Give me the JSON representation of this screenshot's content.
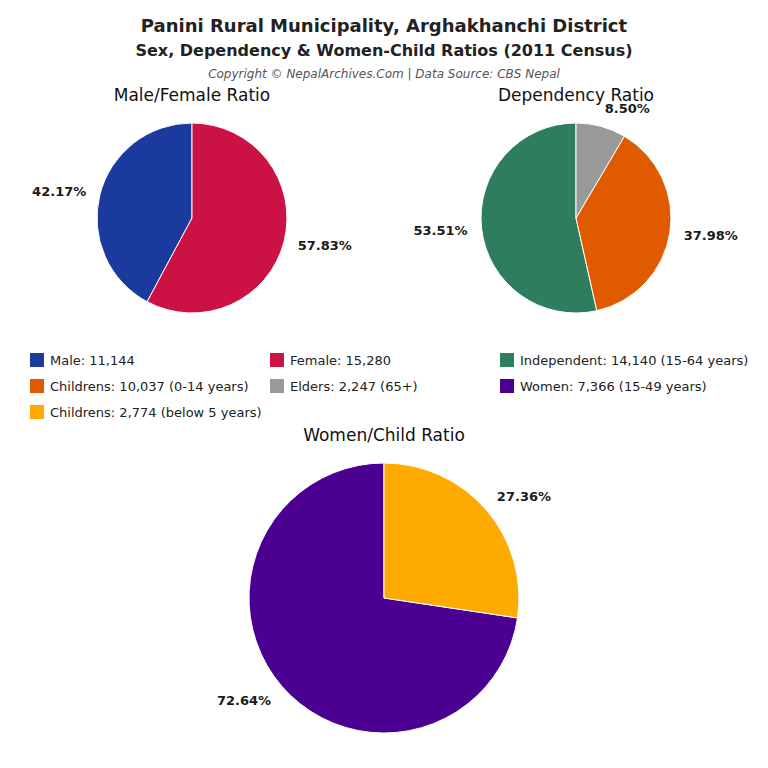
{
  "title": "Panini Rural Municipality, Arghakhanchi District",
  "subtitle": "Sex, Dependency & Women-Child Ratios (2011 Census)",
  "annotations": [
    "Copyright © NepalArchives.Com | Data Source: CBS Nepal"
  ],
  "chart_data": [
    {
      "type": "pie",
      "title": "Male/Female Ratio",
      "categories": [
        "Male: 11,144",
        "Female: 15,280"
      ],
      "values": [
        42.17,
        57.83
      ],
      "value_labels": [
        "42.17%",
        "57.83%"
      ],
      "colors": [
        "#1a3a9e",
        "#cc1144"
      ],
      "data_labels": true,
      "legend": "bottom"
    },
    {
      "type": "pie",
      "title": "Dependency Ratio",
      "categories": [
        "Independent: 14,140 (15-64 years)",
        "Childrens: 10,037 (0-14 years)",
        "Elders: 2,247 (65+)"
      ],
      "values": [
        53.51,
        37.98,
        8.5
      ],
      "value_labels": [
        "53.51%",
        "37.98%",
        "8.50%"
      ],
      "colors": [
        "#2e7d5e",
        "#e05a00",
        "#999999"
      ],
      "data_labels": true,
      "legend": "bottom"
    },
    {
      "type": "pie",
      "title": "Women/Child Ratio",
      "categories": [
        "Women: 7,366 (15-49 years)",
        "Childrens: 2,774 (below 5 years)"
      ],
      "values": [
        72.64,
        27.36
      ],
      "value_labels": [
        "72.64%",
        "27.36%"
      ],
      "colors": [
        "#4b0092",
        "#ffaa00"
      ],
      "data_labels": true,
      "legend": "top"
    }
  ]
}
